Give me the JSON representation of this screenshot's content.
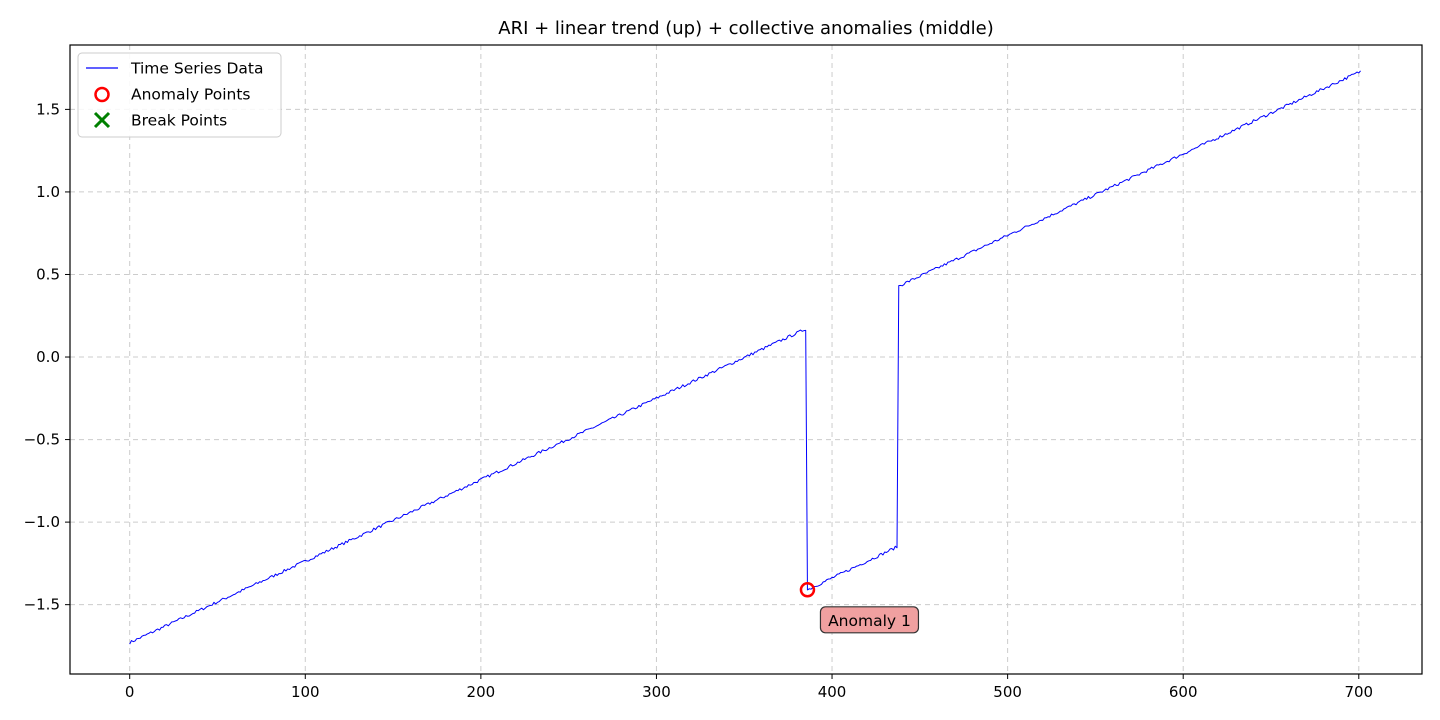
{
  "chart_data": {
    "type": "line",
    "title": "ARI + linear trend (up) + collective anomalies (middle)",
    "xlabel": "",
    "ylabel": "",
    "xlim": [
      -34,
      736
    ],
    "ylim": [
      -1.92,
      1.89
    ],
    "xticks": [
      0,
      100,
      200,
      300,
      400,
      500,
      600,
      700
    ],
    "yticks": [
      -1.5,
      -1.0,
      -0.5,
      0.0,
      0.5,
      1.0,
      1.5
    ],
    "xtick_labels": [
      "0",
      "100",
      "200",
      "300",
      "400",
      "500",
      "600",
      "700"
    ],
    "ytick_labels": [
      "−1.5",
      "−1.0",
      "−0.5",
      "0.0",
      "0.5",
      "1.0",
      "1.5"
    ],
    "grid": true,
    "legend_position": "top-left",
    "series": [
      {
        "name": "Time Series Data",
        "color": "#0000ff",
        "style": "line",
        "segments": [
          {
            "x_start": 0,
            "x_end": 385,
            "y_start": -1.73,
            "y_end": 0.17
          },
          {
            "x_start": 386,
            "x_end": 437,
            "y_start": -1.41,
            "y_end": -1.15
          },
          {
            "x_start": 438,
            "x_end": 701,
            "y_start": 0.43,
            "y_end": 1.73
          }
        ]
      },
      {
        "name": "Anomaly Points",
        "color": "#ff0000",
        "style": "hollow-circle",
        "points": [
          {
            "x": 386,
            "y": -1.41
          }
        ]
      },
      {
        "name": "Break Points",
        "color": "#008000",
        "style": "x-marker",
        "points": []
      }
    ],
    "annotations": [
      {
        "text": "Anomaly 1",
        "x": 386,
        "y": -1.41,
        "color": "#f0a0a0"
      }
    ]
  }
}
